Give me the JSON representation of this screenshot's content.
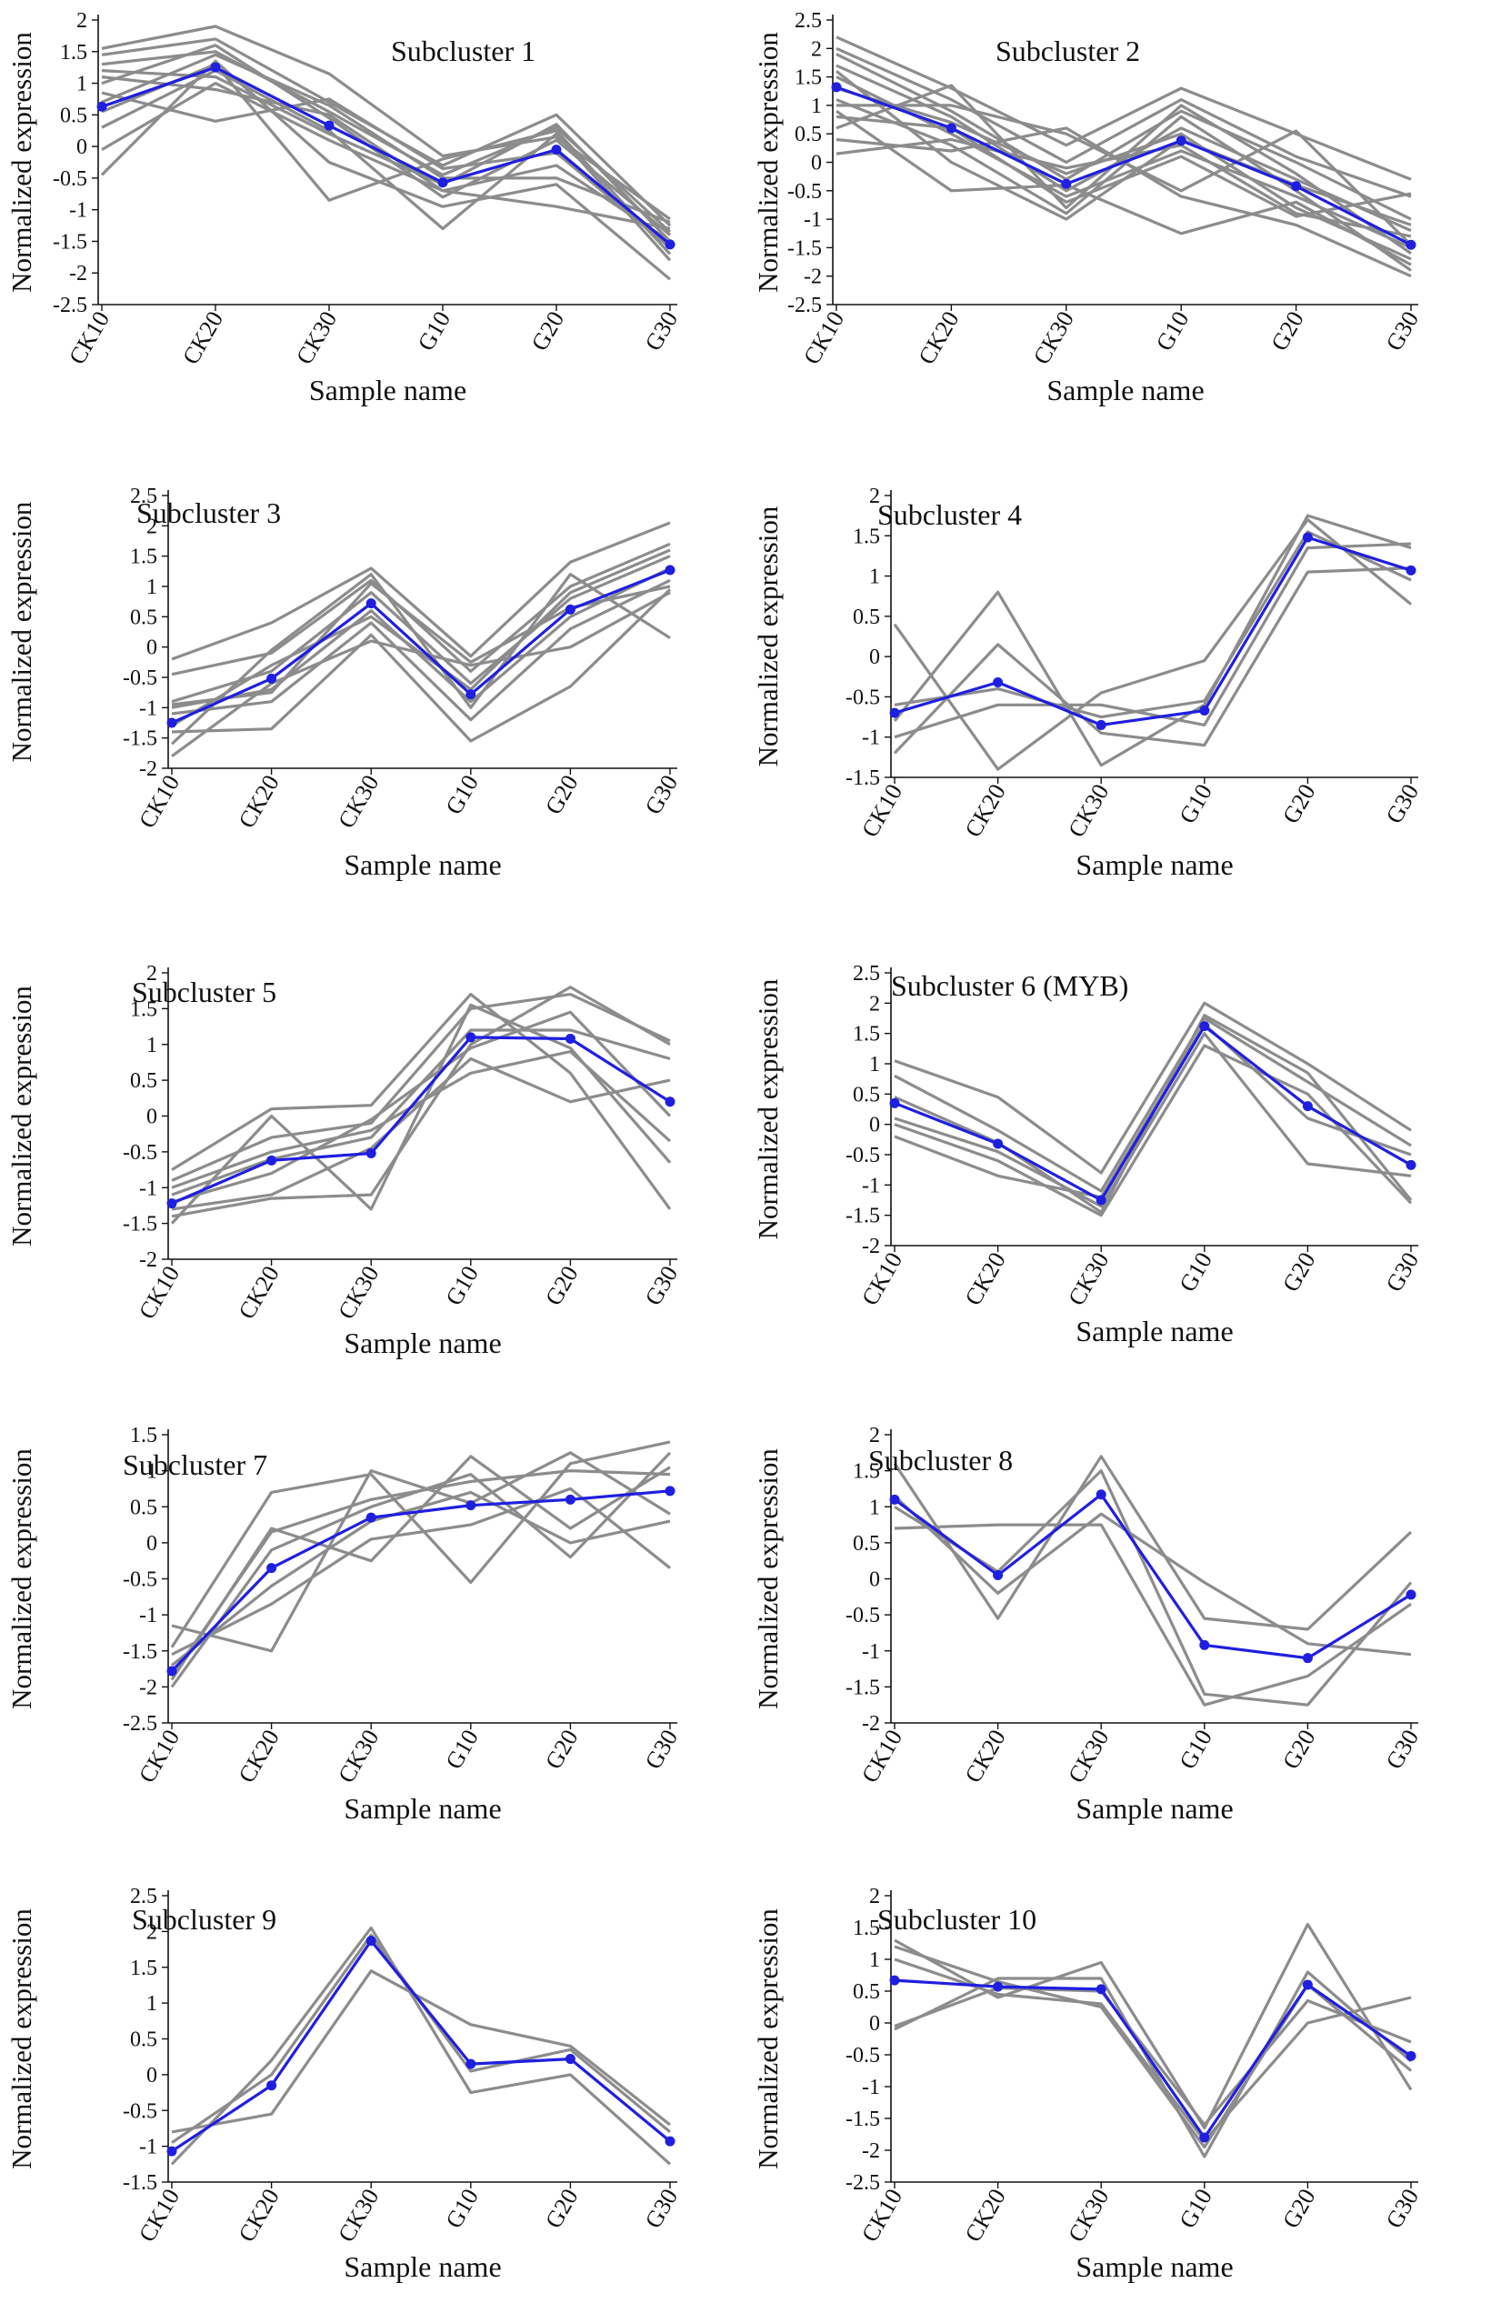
{
  "figure": {
    "x_axis_label": "Sample name",
    "y_axis_label": "Normalized expression",
    "colors": {
      "mean_line": "#1f1fe0",
      "gene_lines": "#8c8c8c",
      "axis": "#111111"
    }
  },
  "chart_data": [
    {
      "type": "line",
      "title": "Subcluster 1",
      "xlabel": "Sample name",
      "ylabel": "Normalized expression",
      "categories": [
        "CK10",
        "CK20",
        "CK30",
        "G10",
        "G20",
        "G30"
      ],
      "ylim": [
        -2.5,
        2
      ],
      "yticks": [
        "2",
        "1.5",
        "1",
        "0.5",
        "0",
        "-0.5",
        "-1",
        "-1.5",
        "-2",
        "-2.5"
      ],
      "mean": [
        0.63,
        1.25,
        0.33,
        -0.57,
        -0.05,
        -1.55
      ],
      "series": [
        [
          1.55,
          1.9,
          1.15,
          -0.15,
          0.15,
          -1.15
        ],
        [
          1.45,
          1.7,
          0.7,
          -0.3,
          0.5,
          -1.25
        ],
        [
          1.3,
          1.5,
          0.55,
          -0.45,
          0.3,
          -1.35
        ],
        [
          1.2,
          1.1,
          0.2,
          -0.6,
          0.35,
          -1.5
        ],
        [
          1.0,
          1.6,
          0.45,
          -0.8,
          0.1,
          -1.4
        ],
        [
          0.85,
          0.4,
          0.75,
          -0.35,
          -0.1,
          -1.6
        ],
        [
          0.55,
          1.3,
          -0.85,
          -0.2,
          0.25,
          -1.7
        ],
        [
          0.3,
          1.2,
          0.25,
          -1.3,
          0.2,
          -1.8
        ],
        [
          -0.05,
          1.0,
          0.1,
          -0.7,
          -0.3,
          -1.5
        ],
        [
          -0.45,
          1.35,
          -0.25,
          -0.95,
          -0.6,
          -2.1
        ],
        [
          0.7,
          1.45,
          0.65,
          -0.5,
          -0.5,
          -1.2
        ],
        [
          1.1,
          0.9,
          0.5,
          -0.7,
          -0.95,
          -1.3
        ]
      ]
    },
    {
      "type": "line",
      "title": "Subcluster 2",
      "xlabel": "Sample name",
      "ylabel": "Normalized expression",
      "categories": [
        "CK10",
        "CK20",
        "CK30",
        "G10",
        "G20",
        "G30"
      ],
      "ylim": [
        -2.5,
        2.5
      ],
      "yticks": [
        "2.5",
        "2",
        "1.5",
        "1",
        "0.5",
        "0",
        "-0.5",
        "-1",
        "-1.5",
        "-2",
        "-2.5"
      ],
      "mean": [
        1.32,
        0.6,
        -0.38,
        0.38,
        -0.42,
        -1.45
      ],
      "series": [
        [
          2.2,
          1.3,
          0.3,
          1.3,
          0.5,
          -0.3
        ],
        [
          2.0,
          1.1,
          0.0,
          1.1,
          0.1,
          -0.6
        ],
        [
          1.9,
          0.9,
          -0.3,
          0.9,
          0.0,
          -1.0
        ],
        [
          1.7,
          0.8,
          -0.5,
          0.6,
          -0.3,
          -1.2
        ],
        [
          1.5,
          0.5,
          -0.6,
          0.2,
          -0.6,
          -1.5
        ],
        [
          1.3,
          0.7,
          -0.2,
          0.5,
          -0.8,
          -1.7
        ],
        [
          1.1,
          0.3,
          -0.9,
          0.8,
          -0.5,
          -1.9
        ],
        [
          0.9,
          -0.5,
          -0.4,
          -1.25,
          -0.7,
          -1.8
        ],
        [
          0.6,
          1.35,
          -0.8,
          1.0,
          -0.2,
          -1.6
        ],
        [
          0.4,
          0.2,
          0.6,
          -0.6,
          -1.1,
          -2.0
        ],
        [
          0.15,
          0.4,
          -0.1,
          0.3,
          -0.9,
          -1.3
        ],
        [
          1.6,
          0.0,
          -1.0,
          0.4,
          -0.4,
          -1.1
        ],
        [
          1.0,
          1.0,
          0.5,
          -0.5,
          0.55,
          -1.45
        ],
        [
          0.8,
          0.6,
          -0.7,
          0.1,
          -0.95,
          -0.55
        ]
      ]
    },
    {
      "type": "line",
      "title": "Subcluster 3",
      "xlabel": "Sample name",
      "ylabel": "Normalized expression",
      "categories": [
        "CK10",
        "CK20",
        "CK30",
        "G10",
        "G20",
        "G30"
      ],
      "ylim": [
        -2,
        2.5
      ],
      "yticks": [
        "2.5",
        "2",
        "1.5",
        "1",
        "0.5",
        "0",
        "-0.5",
        "-1",
        "-1.5",
        "-2"
      ],
      "mean": [
        -1.25,
        -0.52,
        0.72,
        -0.78,
        0.62,
        1.27
      ],
      "series": [
        [
          -0.2,
          0.4,
          1.3,
          -0.15,
          1.4,
          2.05
        ],
        [
          -0.45,
          -0.1,
          1.1,
          -0.4,
          1.0,
          1.7
        ],
        [
          -0.9,
          -0.4,
          0.9,
          -0.6,
          0.8,
          1.5
        ],
        [
          -1.0,
          -0.7,
          0.6,
          -0.9,
          0.5,
          1.3
        ],
        [
          -1.1,
          -0.9,
          0.4,
          -1.2,
          0.3,
          1.1
        ],
        [
          -1.4,
          -1.35,
          0.2,
          -1.55,
          -0.65,
          0.95
        ],
        [
          -1.6,
          -0.05,
          1.2,
          -1.0,
          1.2,
          0.15
        ],
        [
          -1.8,
          -0.6,
          0.1,
          -0.3,
          0.0,
          0.9
        ],
        [
          -1.3,
          -0.3,
          0.5,
          -0.7,
          0.9,
          1.6
        ],
        [
          -0.95,
          -0.75,
          1.05,
          -0.25,
          0.65,
          1.0
        ]
      ]
    },
    {
      "type": "line",
      "title": "Subcluster 4",
      "xlabel": "Sample name",
      "ylabel": "Normalized expression",
      "categories": [
        "CK10",
        "CK20",
        "CK30",
        "G10",
        "G20",
        "G30"
      ],
      "ylim": [
        -1.5,
        2
      ],
      "yticks": [
        "2",
        "1.5",
        "1",
        "0.5",
        "0",
        "-0.5",
        "-1",
        "-1.5"
      ],
      "mean": [
        -0.7,
        -0.32,
        -0.85,
        -0.67,
        1.48,
        1.07
      ],
      "series": [
        [
          0.4,
          -1.4,
          -0.45,
          -0.05,
          1.7,
          0.65
        ],
        [
          -0.8,
          0.8,
          -1.35,
          -0.6,
          1.75,
          1.35
        ],
        [
          -1.2,
          0.15,
          -0.95,
          -1.1,
          1.05,
          1.1
        ],
        [
          -1.0,
          -0.6,
          -0.6,
          -0.85,
          1.35,
          1.4
        ],
        [
          -0.6,
          -0.4,
          -0.75,
          -0.55,
          1.55,
          0.95
        ]
      ]
    },
    {
      "type": "line",
      "title": "Subcluster 5",
      "xlabel": "Sample name",
      "ylabel": "Normalized expression",
      "categories": [
        "CK10",
        "CK20",
        "CK30",
        "G10",
        "G20",
        "G30"
      ],
      "ylim": [
        -2,
        2
      ],
      "yticks": [
        "2",
        "1.5",
        "1",
        "0.5",
        "0",
        "-0.5",
        "-1",
        "-1.5",
        "-2"
      ],
      "mean": [
        -1.22,
        -0.62,
        -0.52,
        1.1,
        1.08,
        0.2
      ],
      "series": [
        [
          -0.75,
          0.1,
          0.15,
          1.7,
          0.6,
          -1.3
        ],
        [
          -0.9,
          -0.3,
          -0.1,
          1.5,
          1.7,
          1.05
        ],
        [
          -1.1,
          -0.6,
          -0.3,
          1.2,
          1.2,
          0.8
        ],
        [
          -1.3,
          -1.1,
          -0.45,
          0.8,
          0.2,
          0.5
        ],
        [
          -1.5,
          0.0,
          -1.3,
          1.55,
          0.95,
          -0.65
        ],
        [
          -1.4,
          -1.15,
          -1.1,
          1.0,
          1.8,
          1.0
        ],
        [
          -1.2,
          -0.8,
          -0.05,
          0.95,
          1.45,
          0.0
        ],
        [
          -1.0,
          -0.5,
          -0.2,
          0.6,
          0.9,
          -0.35
        ]
      ]
    },
    {
      "type": "line",
      "title": "Subcluster 6 (MYB)",
      "xlabel": "Sample name",
      "ylabel": "Normalized expression",
      "categories": [
        "CK10",
        "CK20",
        "CK30",
        "G10",
        "G20",
        "G30"
      ],
      "ylim": [
        -2,
        2.5
      ],
      "yticks": [
        "2.5",
        "2",
        "1.5",
        "1",
        "0.5",
        "0",
        "-0.5",
        "-1",
        "-1.5",
        "-2"
      ],
      "mean": [
        0.35,
        -0.32,
        -1.25,
        1.62,
        0.3,
        -0.67
      ],
      "series": [
        [
          1.05,
          0.45,
          -0.8,
          2.0,
          1.0,
          -0.1
        ],
        [
          0.8,
          -0.1,
          -1.1,
          1.75,
          0.7,
          -0.35
        ],
        [
          0.1,
          -0.45,
          -1.35,
          1.5,
          -0.65,
          -0.85
        ],
        [
          0.0,
          -0.6,
          -1.5,
          1.3,
          0.5,
          -1.3
        ],
        [
          -0.2,
          -0.85,
          -1.2,
          1.65,
          0.1,
          -0.5
        ],
        [
          0.45,
          -0.3,
          -1.45,
          1.8,
          0.85,
          -1.25
        ]
      ]
    },
    {
      "type": "line",
      "title": "Subcluster 7",
      "xlabel": "Sample name",
      "ylabel": "Normalized expression",
      "categories": [
        "CK10",
        "CK20",
        "CK30",
        "G10",
        "G20",
        "G30"
      ],
      "ylim": [
        -2.5,
        1.5
      ],
      "yticks": [
        "1.5",
        "1",
        "0.5",
        "0",
        "-0.5",
        "-1",
        "-1.5",
        "-2",
        "-2.5"
      ],
      "mean": [
        -1.78,
        -0.35,
        0.35,
        0.52,
        0.6,
        0.72
      ],
      "series": [
        [
          -1.15,
          -1.5,
          1.0,
          0.55,
          1.25,
          0.4
        ],
        [
          -1.45,
          0.7,
          0.95,
          -0.55,
          1.1,
          1.4
        ],
        [
          -1.9,
          0.2,
          -0.25,
          1.2,
          0.2,
          1.05
        ],
        [
          -2.0,
          -0.1,
          0.5,
          0.95,
          -0.2,
          1.25
        ],
        [
          -1.7,
          -0.6,
          0.3,
          0.7,
          0.0,
          0.3
        ],
        [
          -1.55,
          -0.85,
          0.05,
          0.25,
          0.75,
          -0.35
        ],
        [
          -1.85,
          0.15,
          0.6,
          0.85,
          1.0,
          0.95
        ]
      ]
    },
    {
      "type": "line",
      "title": "Subcluster 8",
      "xlabel": "Sample name",
      "ylabel": "Normalized expression",
      "categories": [
        "CK10",
        "CK20",
        "CK30",
        "G10",
        "G20",
        "G30"
      ],
      "ylim": [
        -2,
        2
      ],
      "yticks": [
        "2",
        "1.5",
        "1",
        "0.5",
        "0",
        "-0.5",
        "-1",
        "-1.5",
        "-2"
      ],
      "mean": [
        1.1,
        0.05,
        1.17,
        -0.92,
        -1.1,
        -0.22
      ],
      "series": [
        [
          1.6,
          -0.55,
          1.7,
          -0.55,
          -0.7,
          0.65
        ],
        [
          0.7,
          0.75,
          0.75,
          -1.75,
          -1.35,
          -0.35
        ],
        [
          1.0,
          0.1,
          1.5,
          -1.6,
          -1.75,
          -0.05
        ],
        [
          1.15,
          -0.2,
          0.9,
          -0.05,
          -0.9,
          -1.05
        ]
      ]
    },
    {
      "type": "line",
      "title": "Subcluster 9",
      "xlabel": "Sample name",
      "ylabel": "Normalized expression",
      "categories": [
        "CK10",
        "CK20",
        "CK30",
        "G10",
        "G20",
        "G30"
      ],
      "ylim": [
        -1.5,
        2.5
      ],
      "yticks": [
        "2.5",
        "2",
        "1.5",
        "1",
        "0.5",
        "0",
        "-0.5",
        "-1",
        "-1.5"
      ],
      "mean": [
        -1.07,
        -0.15,
        1.87,
        0.15,
        0.22,
        -0.93
      ],
      "series": [
        [
          -0.8,
          -0.55,
          1.45,
          0.7,
          0.4,
          -0.7
        ],
        [
          -1.25,
          0.2,
          2.05,
          -0.25,
          0.0,
          -1.25
        ],
        [
          -0.95,
          0.0,
          1.95,
          0.05,
          0.35,
          -0.8
        ]
      ]
    },
    {
      "type": "line",
      "title": "Subcluster 10",
      "xlabel": "Sample name",
      "ylabel": "Normalized expression",
      "categories": [
        "CK10",
        "CK20",
        "CK30",
        "G10",
        "G20",
        "G30"
      ],
      "ylim": [
        -2.5,
        2
      ],
      "yticks": [
        "2",
        "1.5",
        "1",
        "0.5",
        "0",
        "-0.5",
        "-1",
        "-1.5",
        "-2",
        "-2.5"
      ],
      "mean": [
        0.67,
        0.57,
        0.53,
        -1.8,
        0.6,
        -0.52
      ],
      "series": [
        [
          1.3,
          0.4,
          0.95,
          -1.65,
          1.55,
          -1.05
        ],
        [
          1.0,
          0.45,
          0.3,
          -1.85,
          0.0,
          0.4
        ],
        [
          -0.1,
          0.7,
          0.7,
          -2.1,
          0.8,
          -0.6
        ],
        [
          -0.05,
          0.55,
          0.5,
          -1.6,
          0.35,
          -0.3
        ],
        [
          1.2,
          0.65,
          0.25,
          -1.95,
          0.6,
          -0.75
        ]
      ]
    }
  ]
}
